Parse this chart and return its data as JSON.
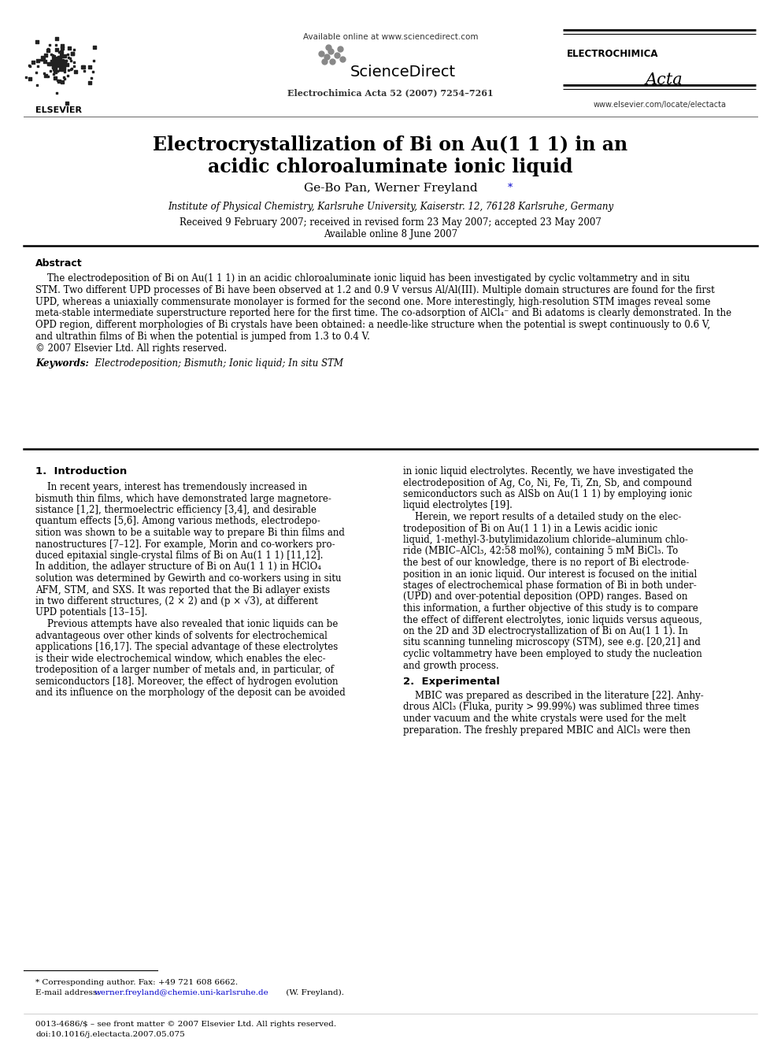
{
  "title_line1": "Electrocrystallization of Bi on Au(1 1 1) in an",
  "title_line2": "acidic chloroaluminate ionic liquid",
  "authors_main": "Ge-Bo Pan, Werner Freyland",
  "affiliation": "Institute of Physical Chemistry, Karlsruhe University, Kaiserstr. 12, 76128 Karlsruhe, Germany",
  "dates_line1": "Received 9 February 2007; received in revised form 23 May 2007; accepted 23 May 2007",
  "dates_line2": "Available online 8 June 2007",
  "journal_info": "Electrochimica Acta 52 (2007) 7254–7261",
  "available_online": "Available online at www.sciencedirect.com",
  "elsevier_text": "ELSEVIER",
  "journal_name_top": "ELECTROCHIMICA",
  "journal_name_script": "Acta",
  "website": "www.elsevier.com/locate/electacta",
  "abstract_title": "Abstract",
  "keywords_label": "Keywords:",
  "keywords": "Electrodeposition; Bismuth; Ionic liquid; In situ STM",
  "section1_title": "1.  Introduction",
  "section2_title": "2.  Experimental",
  "footnote_star": "* Corresponding author. Fax: +49 721 608 6662.",
  "footnote_email1": "E-mail address: ",
  "footnote_email2": "werner.freyland@chemie.uni-karlsruhe.de",
  "footnote_email3": " (W. Freyland).",
  "footer_line1": "0013-4686/$ – see front matter © 2007 Elsevier Ltd. All rights reserved.",
  "footer_line2": "doi:10.1016/j.electacta.2007.05.075",
  "bg_color": "#ffffff",
  "text_color": "#000000",
  "link_color": "#0000cc",
  "abstract_lines": [
    "    The electrodeposition of Bi on Au(1 1 1) in an acidic chloroaluminate ionic liquid has been investigated by cyclic voltammetry and in situ",
    "STM. Two different UPD processes of Bi have been observed at 1.2 and 0.9 V versus Al/Al(III). Multiple domain structures are found for the first",
    "UPD, whereas a uniaxially commensurate monolayer is formed for the second one. More interestingly, high-resolution STM images reveal some",
    "meta-stable intermediate superstructure reported here for the first time. The co-adsorption of AlCl₄⁻ and Bi adatoms is clearly demonstrated. In the",
    "OPD region, different morphologies of Bi crystals have been obtained: a needle-like structure when the potential is swept continuously to 0.6 V,",
    "and ultrathin films of Bi when the potential is jumped from 1.3 to 0.4 V.",
    "© 2007 Elsevier Ltd. All rights reserved."
  ],
  "intro_col1": [
    "    In recent years, interest has tremendously increased in",
    "bismuth thin films, which have demonstrated large magnetore-",
    "sistance [1,2], thermoelectric efficiency [3,4], and desirable",
    "quantum effects [5,6]. Among various methods, electrodepo-",
    "sition was shown to be a suitable way to prepare Bi thin films and",
    "nanostructures [7–12]. For example, Morin and co-workers pro-",
    "duced epitaxial single-crystal films of Bi on Au(1 1 1) [11,12].",
    "In addition, the adlayer structure of Bi on Au(1 1 1) in HClO₄",
    "solution was determined by Gewirth and co-workers using in situ",
    "AFM, STM, and SXS. It was reported that the Bi adlayer exists",
    "in two different structures, (2 × 2) and (p × √3), at different",
    "UPD potentials [13–15].",
    "    Previous attempts have also revealed that ionic liquids can be",
    "advantageous over other kinds of solvents for electrochemical",
    "applications [16,17]. The special advantage of these electrolytes",
    "is their wide electrochemical window, which enables the elec-",
    "trodeposition of a larger number of metals and, in particular, of",
    "semiconductors [18]. Moreover, the effect of hydrogen evolution",
    "and its influence on the morphology of the deposit can be avoided"
  ],
  "intro_col2": [
    "in ionic liquid electrolytes. Recently, we have investigated the",
    "electrodeposition of Ag, Co, Ni, Fe, Ti, Zn, Sb, and compound",
    "semiconductors such as AlSb on Au(1 1 1) by employing ionic",
    "liquid electrolytes [19].",
    "    Herein, we report results of a detailed study on the elec-",
    "trodeposition of Bi on Au(1 1 1) in a Lewis acidic ionic",
    "liquid, 1-methyl-3-butylimidazolium chloride–aluminum chlo-",
    "ride (MBIC–AlCl₃, 42:58 mol%), containing 5 mM BiCl₃. To",
    "the best of our knowledge, there is no report of Bi electrode-",
    "position in an ionic liquid. Our interest is focused on the initial",
    "stages of electrochemical phase formation of Bi in both under-",
    "(UPD) and over-potential deposition (OPD) ranges. Based on",
    "this information, a further objective of this study is to compare",
    "the effect of different electrolytes, ionic liquids versus aqueous,",
    "on the 2D and 3D electrocrystallization of Bi on Au(1 1 1). In",
    "situ scanning tunneling microscopy (STM), see e.g. [20,21] and",
    "cyclic voltammetry have been employed to study the nucleation",
    "and growth process."
  ],
  "sec2_col2": [
    "    MBIC was prepared as described in the literature [22]. Anhy-",
    "drous AlCl₃ (Fluka, purity > 99.99%) was sublimed three times",
    "under vacuum and the white crystals were used for the melt",
    "preparation. The freshly prepared MBIC and AlCl₃ were then"
  ]
}
